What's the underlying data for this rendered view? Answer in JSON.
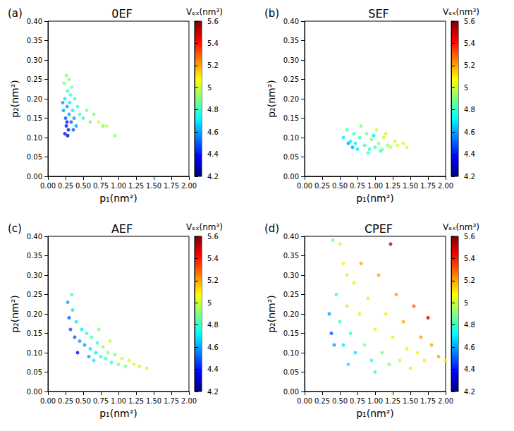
{
  "chart_data": [
    {
      "type": "scatter",
      "title": "0EF",
      "panel_label": "(a)",
      "marker": "circle",
      "xlabel": "p₁(nm²)",
      "ylabel": "p₂(nm²)",
      "xlim": [
        0,
        2
      ],
      "ylim": [
        0,
        0.4
      ],
      "xticks": [
        {
          "value": 0,
          "label": "0.00"
        },
        {
          "value": 0.25,
          "label": "0.25"
        },
        {
          "value": 0.5,
          "label": "0.50"
        },
        {
          "value": 0.75,
          "label": "0.75"
        },
        {
          "value": 1,
          "label": "1.00"
        },
        {
          "value": 1.25,
          "label": "1.25"
        },
        {
          "value": 1.5,
          "label": "1.50"
        },
        {
          "value": 1.75,
          "label": "1.75"
        },
        {
          "value": 2,
          "label": "2.00"
        }
      ],
      "yticks": [
        {
          "value": 0,
          "label": "0.00"
        },
        {
          "value": 0.05,
          "label": "0.05"
        },
        {
          "value": 0.1,
          "label": "0.10"
        },
        {
          "value": 0.15,
          "label": "0.15"
        },
        {
          "value": 0.2,
          "label": "0.20"
        },
        {
          "value": 0.25,
          "label": "0.25"
        },
        {
          "value": 0.3,
          "label": "0.30"
        },
        {
          "value": 0.35,
          "label": "0.35"
        },
        {
          "value": 0.4,
          "label": "0.40"
        }
      ],
      "colorbar": {
        "label": "Vₑₓ(nm³)",
        "range": [
          4.2,
          5.6
        ],
        "ticks": [
          4.2,
          4.4,
          4.6,
          4.8,
          5.0,
          5.2,
          5.4,
          5.6
        ]
      },
      "x": [
        0.22,
        0.24,
        0.25,
        0.26,
        0.27,
        0.28,
        0.3,
        0.23,
        0.26,
        0.29,
        0.31,
        0.33,
        0.35,
        0.32,
        0.37,
        0.4,
        0.42,
        0.45,
        0.38,
        0.5,
        0.55,
        0.6,
        0.65,
        0.72,
        0.78,
        0.83,
        0.95,
        0.24,
        0.21,
        0.28,
        0.34,
        0.27,
        0.3,
        0.36
      ],
      "values": [
        0.17,
        0.2,
        0.15,
        0.13,
        0.18,
        0.22,
        0.16,
        0.24,
        0.26,
        0.12,
        0.19,
        0.14,
        0.17,
        0.21,
        0.15,
        0.13,
        0.18,
        0.16,
        0.2,
        0.15,
        0.17,
        0.14,
        0.16,
        0.14,
        0.13,
        0.13,
        0.105,
        0.11,
        0.19,
        0.105,
        0.23,
        0.14,
        0.25,
        0.12
      ],
      "vex": [
        4.6,
        4.7,
        4.5,
        4.4,
        4.6,
        4.8,
        4.6,
        4.9,
        4.9,
        4.4,
        4.7,
        4.5,
        4.7,
        4.8,
        4.6,
        4.6,
        4.8,
        4.8,
        4.8,
        4.8,
        4.9,
        4.9,
        4.9,
        5.0,
        4.9,
        5.0,
        4.9,
        4.4,
        4.6,
        4.3,
        4.9,
        4.4,
        4.9,
        4.5
      ]
    },
    {
      "type": "scatter",
      "title": "SEF",
      "panel_label": "(b)",
      "marker": "circle",
      "xlabel": "p₁(nm²)",
      "ylabel": "p₂(nm²)",
      "xlim": [
        0,
        2
      ],
      "ylim": [
        0,
        0.4
      ],
      "xticks": [
        {
          "value": 0,
          "label": "0.00"
        },
        {
          "value": 0.25,
          "label": "0.25"
        },
        {
          "value": 0.5,
          "label": "0.50"
        },
        {
          "value": 0.75,
          "label": "0.75"
        },
        {
          "value": 1,
          "label": "1.00"
        },
        {
          "value": 1.25,
          "label": "1.25"
        },
        {
          "value": 1.5,
          "label": "1.50"
        },
        {
          "value": 1.75,
          "label": "1.75"
        },
        {
          "value": 2,
          "label": "2.00"
        }
      ],
      "yticks": [
        {
          "value": 0,
          "label": "0.00"
        },
        {
          "value": 0.05,
          "label": "0.05"
        },
        {
          "value": 0.1,
          "label": "0.10"
        },
        {
          "value": 0.15,
          "label": "0.15"
        },
        {
          "value": 0.2,
          "label": "0.20"
        },
        {
          "value": 0.25,
          "label": "0.25"
        },
        {
          "value": 0.3,
          "label": "0.30"
        },
        {
          "value": 0.35,
          "label": "0.35"
        },
        {
          "value": 0.4,
          "label": "0.40"
        }
      ],
      "colorbar": {
        "label": "Vₑₓ(nm³)",
        "range": [
          4.2,
          5.6
        ],
        "ticks": [
          4.2,
          4.4,
          4.6,
          4.8,
          5.0,
          5.2,
          5.4,
          5.6
        ]
      },
      "x": [
        0.55,
        0.6,
        0.65,
        0.7,
        0.72,
        0.78,
        0.8,
        0.85,
        0.88,
        0.92,
        0.95,
        1.0,
        1.02,
        1.05,
        1.1,
        1.12,
        1.18,
        1.22,
        1.28,
        1.32,
        1.4,
        1.45,
        0.75,
        0.98,
        1.08,
        0.68,
        0.62,
        1.15,
        0.9
      ],
      "values": [
        0.1,
        0.12,
        0.09,
        0.11,
        0.085,
        0.1,
        0.13,
        0.08,
        0.11,
        0.07,
        0.095,
        0.075,
        0.12,
        0.085,
        0.07,
        0.1,
        0.08,
        0.075,
        0.09,
        0.08,
        0.085,
        0.075,
        0.07,
        0.105,
        0.065,
        0.075,
        0.085,
        0.11,
        0.06
      ],
      "vex": [
        4.7,
        4.8,
        4.7,
        4.8,
        4.7,
        4.8,
        4.9,
        4.8,
        4.9,
        4.8,
        4.9,
        4.8,
        5.0,
        4.9,
        4.9,
        5.0,
        4.9,
        5.0,
        5.0,
        5.0,
        5.0,
        5.0,
        4.7,
        4.7,
        4.8,
        4.6,
        4.6,
        5.0,
        4.8
      ]
    },
    {
      "type": "scatter",
      "title": "AEF",
      "panel_label": "(c)",
      "marker": "circle",
      "xlabel": "p₁(nm²)",
      "ylabel": "p₂(nm²)",
      "xlim": [
        0,
        2
      ],
      "ylim": [
        0,
        0.4
      ],
      "xticks": [
        {
          "value": 0,
          "label": "0.00"
        },
        {
          "value": 0.25,
          "label": "0.25"
        },
        {
          "value": 0.5,
          "label": "0.50"
        },
        {
          "value": 0.75,
          "label": "0.75"
        },
        {
          "value": 1,
          "label": "1.00"
        },
        {
          "value": 1.25,
          "label": "1.25"
        },
        {
          "value": 1.5,
          "label": "1.50"
        },
        {
          "value": 1.75,
          "label": "1.75"
        },
        {
          "value": 2,
          "label": "2.00"
        }
      ],
      "yticks": [
        {
          "value": 0,
          "label": "0.00"
        },
        {
          "value": 0.05,
          "label": "0.05"
        },
        {
          "value": 0.1,
          "label": "0.10"
        },
        {
          "value": 0.15,
          "label": "0.15"
        },
        {
          "value": 0.2,
          "label": "0.20"
        },
        {
          "value": 0.25,
          "label": "0.25"
        },
        {
          "value": 0.3,
          "label": "0.30"
        },
        {
          "value": 0.35,
          "label": "0.35"
        },
        {
          "value": 0.4,
          "label": "0.40"
        }
      ],
      "colorbar": {
        "label": "Vₑₓ(nm³)",
        "range": [
          4.2,
          5.6
        ],
        "ticks": [
          4.2,
          4.4,
          4.6,
          4.8,
          5.0,
          5.2,
          5.4,
          5.6
        ]
      },
      "x": [
        0.28,
        0.3,
        0.32,
        0.35,
        0.38,
        0.4,
        0.45,
        0.48,
        0.52,
        0.55,
        0.6,
        0.62,
        0.68,
        0.7,
        0.75,
        0.78,
        0.82,
        0.85,
        0.9,
        0.95,
        1.0,
        1.05,
        1.1,
        1.15,
        1.22,
        1.3,
        1.4,
        0.34,
        0.42,
        0.58,
        0.72,
        0.88,
        0.65
      ],
      "values": [
        0.23,
        0.19,
        0.16,
        0.21,
        0.14,
        0.18,
        0.13,
        0.16,
        0.12,
        0.15,
        0.11,
        0.14,
        0.1,
        0.125,
        0.09,
        0.115,
        0.085,
        0.1,
        0.075,
        0.095,
        0.07,
        0.085,
        0.065,
        0.08,
        0.07,
        0.065,
        0.06,
        0.25,
        0.1,
        0.09,
        0.16,
        0.13,
        0.08
      ],
      "vex": [
        4.6,
        4.5,
        4.5,
        4.7,
        4.5,
        4.7,
        4.6,
        4.7,
        4.6,
        4.8,
        4.7,
        4.8,
        4.7,
        4.8,
        4.8,
        4.9,
        4.8,
        4.9,
        4.8,
        4.9,
        4.9,
        5.0,
        4.9,
        5.0,
        5.0,
        5.0,
        5.0,
        4.8,
        4.4,
        4.6,
        4.9,
        5.0,
        4.7
      ]
    },
    {
      "type": "scatter",
      "title": "CPEF",
      "panel_label": "(d)",
      "marker": "circle",
      "xlabel": "p₁(nm²)",
      "ylabel": "p₂(nm²)",
      "xlim": [
        0,
        2
      ],
      "ylim": [
        0,
        0.4
      ],
      "xticks": [
        {
          "value": 0,
          "label": "0.00"
        },
        {
          "value": 0.25,
          "label": "0.25"
        },
        {
          "value": 0.5,
          "label": "0.50"
        },
        {
          "value": 0.75,
          "label": "0.75"
        },
        {
          "value": 1,
          "label": "1.00"
        },
        {
          "value": 1.25,
          "label": "1.25"
        },
        {
          "value": 1.5,
          "label": "1.50"
        },
        {
          "value": 1.75,
          "label": "1.75"
        },
        {
          "value": 2,
          "label": "2.00"
        }
      ],
      "yticks": [
        {
          "value": 0,
          "label": "0.00"
        },
        {
          "value": 0.05,
          "label": "0.05"
        },
        {
          "value": 0.1,
          "label": "0.10"
        },
        {
          "value": 0.15,
          "label": "0.15"
        },
        {
          "value": 0.2,
          "label": "0.20"
        },
        {
          "value": 0.25,
          "label": "0.25"
        },
        {
          "value": 0.3,
          "label": "0.30"
        },
        {
          "value": 0.35,
          "label": "0.35"
        },
        {
          "value": 0.4,
          "label": "0.40"
        }
      ],
      "colorbar": {
        "label": "Vₑₓ(nm³)",
        "range": [
          4.2,
          5.6
        ],
        "ticks": [
          4.2,
          4.4,
          4.6,
          4.8,
          5.0,
          5.2,
          5.4,
          5.6
        ]
      },
      "x": [
        0.4,
        0.5,
        0.55,
        0.6,
        0.45,
        0.35,
        0.38,
        0.42,
        0.5,
        0.55,
        0.6,
        0.65,
        0.7,
        0.72,
        0.78,
        0.8,
        0.85,
        0.9,
        0.95,
        1.0,
        1.05,
        1.1,
        1.15,
        1.2,
        1.22,
        1.25,
        1.3,
        1.35,
        1.4,
        1.45,
        1.5,
        1.55,
        1.6,
        1.65,
        1.7,
        1.75,
        1.8,
        1.9,
        2.0,
        0.62,
        1.0
      ],
      "values": [
        0.39,
        0.38,
        0.33,
        0.3,
        0.25,
        0.2,
        0.15,
        0.12,
        0.18,
        0.12,
        0.22,
        0.15,
        0.28,
        0.1,
        0.2,
        0.33,
        0.12,
        0.24,
        0.08,
        0.16,
        0.3,
        0.1,
        0.2,
        0.07,
        0.38,
        0.14,
        0.25,
        0.08,
        0.18,
        0.11,
        0.06,
        0.22,
        0.1,
        0.14,
        0.08,
        0.19,
        0.12,
        0.09,
        0.08,
        0.07,
        0.05
      ],
      "vex": [
        4.9,
        5.0,
        5.1,
        5.0,
        4.8,
        4.6,
        4.5,
        4.6,
        4.8,
        4.7,
        5.0,
        4.8,
        5.1,
        4.7,
        5.0,
        5.2,
        4.9,
        5.1,
        4.8,
        5.0,
        5.2,
        4.9,
        5.1,
        4.9,
        5.5,
        5.1,
        5.2,
        5.0,
        5.2,
        5.1,
        5.0,
        5.3,
        5.1,
        5.2,
        5.1,
        5.5,
        5.2,
        5.2,
        5.1,
        4.7,
        4.8
      ]
    }
  ]
}
